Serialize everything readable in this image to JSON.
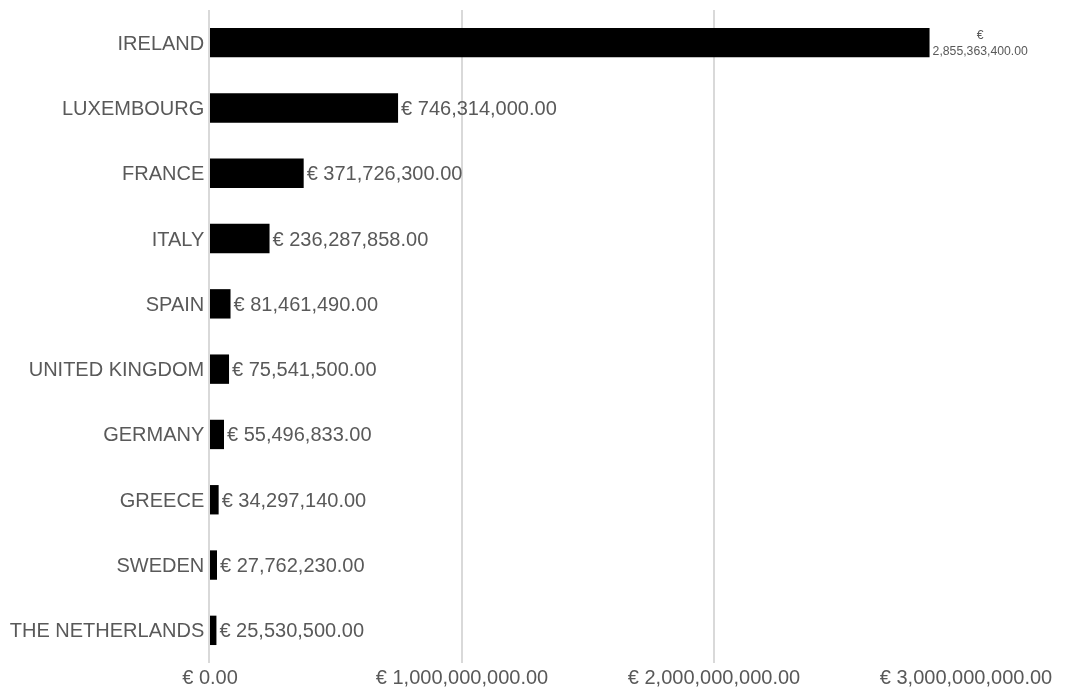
{
  "chart_data": {
    "type": "bar",
    "orientation": "horizontal",
    "categories": [
      "IRELAND",
      "LUXEMBOURG",
      "FRANCE",
      "ITALY",
      "SPAIN",
      "UNITED KINGDOM",
      "GERMANY",
      "GREECE",
      "SWEDEN",
      "THE NETHERLANDS"
    ],
    "values": [
      2855363400,
      746314000,
      371726300,
      236287858,
      81461490,
      75541500,
      55496833,
      34297140,
      27762230,
      25530500
    ],
    "value_labels": [
      "€ 2,855,363,400.00",
      "€ 746,314,000.00",
      "€ 371,726,300.00",
      "€ 236,287,858.00",
      "€ 81,461,490.00",
      "€ 75,541,500.00",
      "€ 55,496,833.00",
      "€ 34,297,140.00",
      "€ 27,762,230.00",
      "€ 25,530,500.00"
    ],
    "color": "#000000",
    "xlim": [
      0,
      3000000000
    ],
    "xticks": [
      {
        "value": 0,
        "label": "€ 0.00"
      },
      {
        "value": 1000000000,
        "label": "€ 1,000,000,000.00"
      },
      {
        "value": 2000000000,
        "label": "€ 2,000,000,000.00"
      },
      {
        "value": 3000000000,
        "label": "€ 3,000,000,000.00"
      }
    ],
    "grid": "x"
  }
}
